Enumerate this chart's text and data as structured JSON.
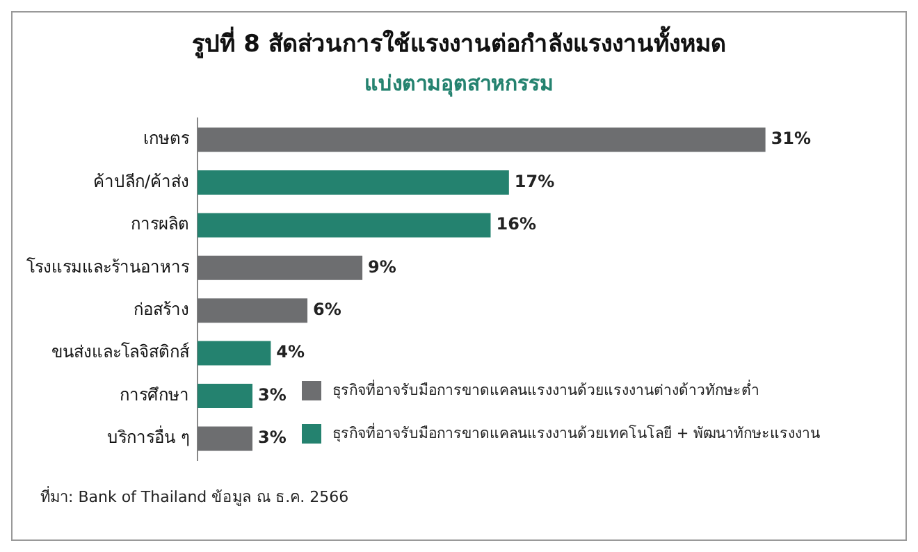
{
  "chart_data": {
    "type": "bar",
    "orientation": "horizontal",
    "stacked": true,
    "title": "รูปที่ 8 สัดส่วนการใช้แรงงานต่อกำลังแรงงานทั้งหมด",
    "subtitle": "แบ่งตามอุตสาหกรรม",
    "categories": [
      "เกษตร",
      "ค้าปลีก/ค้าส่ง",
      "การผลิต",
      "โรงแรมและร้านอาหาร",
      "ก่อสร้าง",
      "ขนส่งและโลจิสติกส์",
      "การศึกษา",
      "บริการอื่น ๆ"
    ],
    "series": [
      {
        "name": "ธุรกิจที่อาจรับมือการขาดแคลนแรงงานด้วยแรงงานต่างด้าวทักษะต่ำ",
        "color": "#6d6e70",
        "values": [
          31,
          null,
          null,
          9,
          6,
          null,
          null,
          3
        ],
        "value_labels": [
          "31%",
          null,
          null,
          "9%",
          "6%",
          null,
          null,
          "3%"
        ]
      },
      {
        "name": "ธุรกิจที่อาจรับมือการขาดแคลนแรงงานด้วยเทคโนโลยี + พัฒนาทักษะแรงงาน",
        "color": "#24826f",
        "values": [
          null,
          17,
          16,
          null,
          null,
          4,
          3,
          null
        ],
        "value_labels": [
          null,
          "17%",
          "16%",
          null,
          null,
          "4%",
          "3%",
          null
        ]
      }
    ],
    "legend": "bottom right",
    "grid": false,
    "annotations": [
      "ที่มา: Bank of Thailand ข้อมูล ณ ธ.ค. 2566"
    ]
  }
}
